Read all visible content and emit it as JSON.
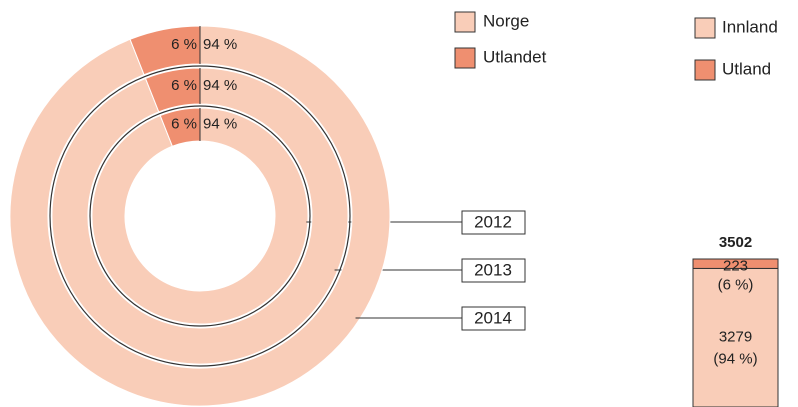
{
  "chart_data": [
    {
      "type": "donut",
      "categories": [
        "2012",
        "2013",
        "2014"
      ],
      "series": [
        {
          "name": "Norge",
          "color": "#f9cdb8",
          "values": [
            94,
            94,
            94
          ],
          "value_labels": [
            "94 %",
            "94 %",
            "94 %"
          ]
        },
        {
          "name": "Utlandet",
          "color": "#ef8f70",
          "values": [
            6,
            6,
            6
          ],
          "value_labels": [
            "6 %",
            "6 %",
            "6 %"
          ]
        }
      ]
    },
    {
      "type": "stacked-bar",
      "total": 3502,
      "series": [
        {
          "name": "Innland",
          "color": "#f9cdb8",
          "values": [
            3279
          ],
          "shares": [
            94
          ],
          "share_labels": [
            "(94 %)"
          ]
        },
        {
          "name": "Utland",
          "color": "#ef8f70",
          "values": [
            223
          ],
          "shares": [
            6
          ],
          "share_labels": [
            "(6 %)"
          ]
        }
      ]
    }
  ]
}
